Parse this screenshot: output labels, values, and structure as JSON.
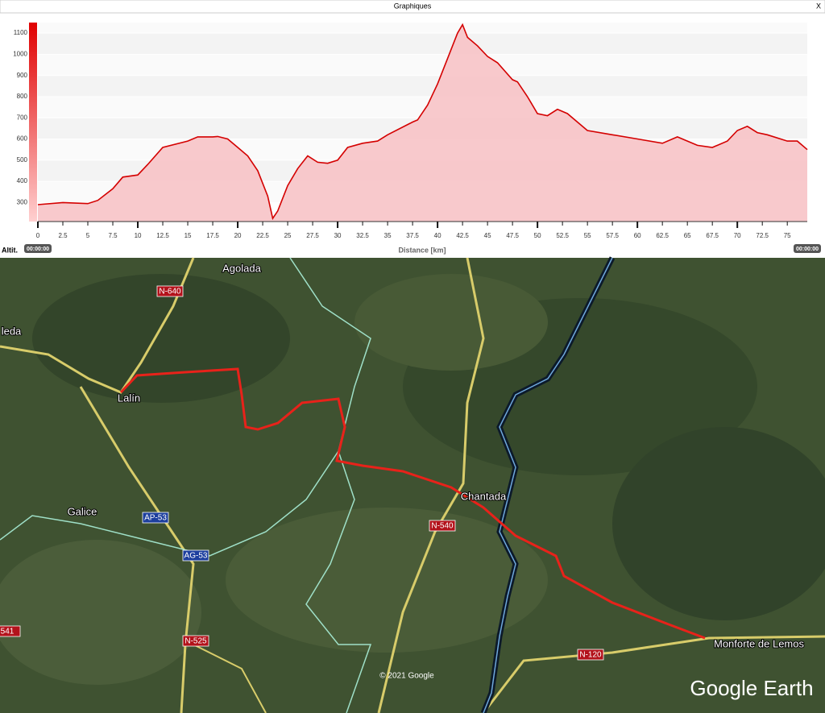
{
  "window": {
    "title": "Graphiques",
    "close": "X"
  },
  "chart_data": {
    "type": "area",
    "ylabel": "Altit.",
    "xlabel": "Distance [km]",
    "start_label": "00:00:00",
    "end_label": "00:00:00",
    "x": [
      0,
      2.5,
      5,
      6,
      7.5,
      8.5,
      10,
      11,
      12.5,
      15,
      16,
      17.5,
      18,
      19,
      20,
      21,
      22,
      23,
      23.5,
      24,
      25,
      26,
      27,
      28,
      29,
      30,
      31,
      32.5,
      34,
      35,
      37.5,
      38,
      39,
      40,
      41,
      42,
      42.5,
      43,
      44,
      45,
      46,
      47.5,
      48,
      49,
      50,
      51,
      52,
      53,
      54,
      55,
      57.5,
      60,
      62.5,
      64,
      65,
      66,
      67.5,
      69,
      70,
      71,
      72,
      73,
      75,
      76,
      77
    ],
    "values": [
      290,
      300,
      295,
      310,
      365,
      420,
      430,
      480,
      560,
      590,
      610,
      610,
      612,
      600,
      560,
      520,
      450,
      330,
      225,
      260,
      380,
      460,
      520,
      490,
      485,
      500,
      560,
      580,
      590,
      620,
      680,
      690,
      760,
      860,
      980,
      1100,
      1140,
      1080,
      1040,
      990,
      960,
      880,
      870,
      800,
      720,
      710,
      740,
      720,
      680,
      640,
      620,
      600,
      580,
      610,
      590,
      570,
      560,
      590,
      640,
      660,
      630,
      620,
      590,
      590,
      550
    ],
    "color": "#d40000",
    "fill": "#f7c3c7",
    "xlim": [
      0,
      77
    ],
    "ylim": [
      210,
      1150
    ],
    "xticks": [
      0,
      2.5,
      5,
      7.5,
      10,
      12.5,
      15,
      17.5,
      20,
      22.5,
      25,
      27.5,
      30,
      32.5,
      35,
      37.5,
      40,
      42.5,
      45,
      47.5,
      50,
      52.5,
      55,
      57.5,
      60,
      62.5,
      65,
      67.5,
      70,
      72.5,
      75
    ],
    "yticks": [
      300,
      400,
      500,
      600,
      700,
      800,
      900,
      1000,
      1100
    ],
    "grid": true
  },
  "map": {
    "labels": [
      "Agolada",
      "N-640",
      "leda",
      "Lalín",
      "Galice",
      "AP-53",
      "AG-53",
      "Chantada",
      "N-540",
      "N-525",
      "541",
      "N-120",
      "Monforte de Lemos"
    ],
    "credit": "© 2021 Google",
    "brand": "Google Earth"
  }
}
